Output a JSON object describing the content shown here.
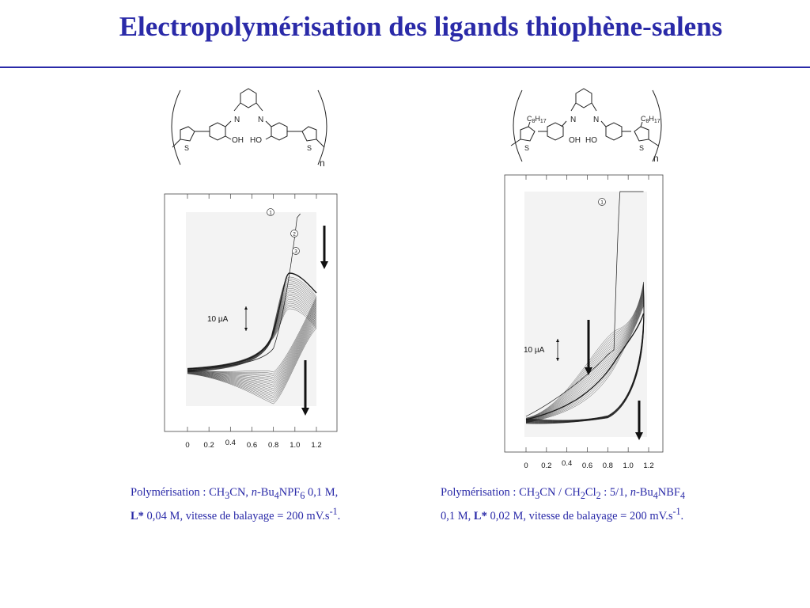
{
  "slide": {
    "title": "Electropolymérisation des ligands thiophène-salens"
  },
  "structures": {
    "left": {
      "atom_labels": [
        "N",
        "N",
        "OH",
        "HO",
        "S",
        "S"
      ],
      "repeat_label": "n"
    },
    "right": {
      "atom_labels": [
        "N",
        "N",
        "OH",
        "HO",
        "S",
        "S"
      ],
      "substituent_prefix": "C",
      "substituent_c": "8",
      "substituent_h_prefix": "H",
      "substituent_h": "17",
      "repeat_label": "n"
    }
  },
  "chart_data": [
    {
      "type": "line",
      "description_of_axes": "cyclic voltammogram",
      "x_tick_labels": [
        "0",
        "0.2",
        "0.4",
        "0.6",
        "0.8",
        "1.0",
        "1.2"
      ],
      "xlim": [
        0,
        1.2
      ],
      "current_scale_label": "10 µA",
      "cycle_markers": [
        "1",
        "2",
        "3"
      ],
      "scan_direction": "arrows pointing down (current decreasing with successive cycles)",
      "first_cycle_onset_potential": 0.8,
      "anodic_peak_potential": 0.95,
      "cathodic_peak_potential": 0.8
    },
    {
      "type": "line",
      "description_of_axes": "cyclic voltammogram",
      "x_tick_labels": [
        "0",
        "0.2",
        "0.4",
        "0.6",
        "0.8",
        "1.0",
        "1.2"
      ],
      "xlim": [
        0,
        1.2
      ],
      "current_scale_label": "10 µA",
      "cycle_markers": [
        "1"
      ],
      "scan_direction": "arrows pointing down",
      "first_cycle_onset_potential": 0.85,
      "anodic_peak_potential": 1.15
    }
  ],
  "captions": {
    "left": {
      "l1_a": "Polymérisation : CH",
      "l1_b": "3",
      "l1_c": "CN, ",
      "l1_d": "n",
      "l1_e": "-Bu",
      "l1_f": "4",
      "l1_g": "NPF",
      "l1_h": "6",
      "l1_i": " 0,1 M,",
      "l2_a": "L*",
      "l2_b": " 0,04 M, vitesse de balayage = 200 mV.s",
      "l2_c": "-1",
      "l2_d": "."
    },
    "right": {
      "l1_a": "Polymérisation : CH",
      "l1_b": "3",
      "l1_c": "CN  / CH",
      "l1_d": "2",
      "l1_e": "Cl",
      "l1_f": "2",
      "l1_g": " : 5/1, ",
      "l1_h": "n",
      "l1_i": "-Bu",
      "l1_j": "4",
      "l1_k": "NBF",
      "l1_l": "4",
      "l2_a": "0,1 M, ",
      "l2_b": "L*",
      "l2_c": " 0,02 M, vitesse de balayage = 200 mV.s",
      "l2_d": "-1",
      "l2_e": "."
    }
  },
  "colors": {
    "title": "#2a2aa8",
    "caption": "#2a2aa8",
    "trace": "#1a1a1a"
  }
}
